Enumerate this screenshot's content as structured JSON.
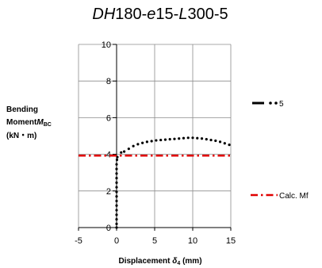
{
  "chart_data": {
    "type": "scatter",
    "title_parts": [
      {
        "text": "DH",
        "italic": true
      },
      {
        "text": "180-",
        "italic": false
      },
      {
        "text": "e",
        "italic": true
      },
      {
        "text": "15-",
        "italic": false
      },
      {
        "text": "L",
        "italic": true
      },
      {
        "text": "300-5",
        "italic": false
      }
    ],
    "xlabel": {
      "text": "Displacement ",
      "symbol": "δ",
      "subscript": "4",
      "unit": " (mm)"
    },
    "ylabel": {
      "line1": "Bending",
      "line2": "Moment",
      "symbol": "M",
      "subscript": "BC",
      "line3": "(kN・m)"
    },
    "xlim": [
      -5,
      15
    ],
    "ylim": [
      0,
      10
    ],
    "x_ticks": [
      -5,
      0,
      5,
      10,
      15
    ],
    "y_ticks": [
      0,
      2,
      4,
      6,
      8,
      10
    ],
    "grid": true,
    "legend_position": "right",
    "series": [
      {
        "name": "5",
        "color": "#000000",
        "style": "dash-dot-dot markers",
        "points": [
          [
            0.0,
            0.0
          ],
          [
            0.0,
            0.2
          ],
          [
            0.0,
            0.45
          ],
          [
            0.0,
            0.7
          ],
          [
            0.0,
            0.95
          ],
          [
            0.0,
            1.2
          ],
          [
            0.0,
            1.45
          ],
          [
            0.0,
            1.7
          ],
          [
            0.0,
            1.95
          ],
          [
            0.0,
            2.2
          ],
          [
            0.0,
            2.45
          ],
          [
            0.0,
            2.7
          ],
          [
            0.0,
            2.95
          ],
          [
            0.0,
            3.2
          ],
          [
            0.0,
            3.45
          ],
          [
            0.05,
            3.7
          ],
          [
            0.1,
            3.85
          ],
          [
            0.6,
            4.1
          ],
          [
            1.0,
            4.15
          ],
          [
            1.6,
            4.3
          ],
          [
            2.2,
            4.45
          ],
          [
            2.8,
            4.55
          ],
          [
            3.4,
            4.62
          ],
          [
            4.0,
            4.68
          ],
          [
            4.6,
            4.72
          ],
          [
            5.2,
            4.76
          ],
          [
            5.8,
            4.78
          ],
          [
            6.4,
            4.8
          ],
          [
            7.0,
            4.82
          ],
          [
            7.6,
            4.84
          ],
          [
            8.2,
            4.86
          ],
          [
            8.8,
            4.88
          ],
          [
            9.4,
            4.9
          ],
          [
            10.0,
            4.9
          ],
          [
            10.6,
            4.88
          ],
          [
            11.2,
            4.86
          ],
          [
            11.8,
            4.82
          ],
          [
            12.4,
            4.78
          ],
          [
            13.0,
            4.74
          ],
          [
            13.6,
            4.68
          ],
          [
            14.2,
            4.6
          ],
          [
            14.8,
            4.52
          ]
        ]
      },
      {
        "name": "Calc. Mf",
        "color": "#e00000",
        "style": "dash-dot line",
        "points": [
          [
            -5,
            3.93
          ],
          [
            15,
            3.93
          ]
        ]
      }
    ]
  }
}
